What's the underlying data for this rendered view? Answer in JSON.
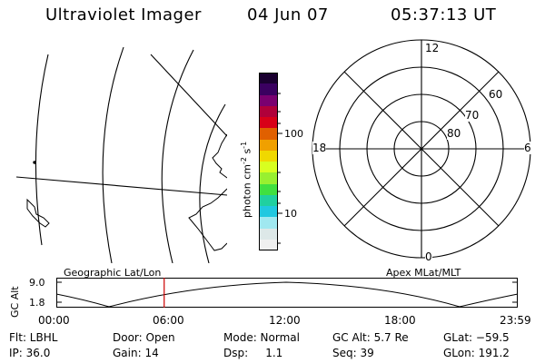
{
  "header": {
    "title": "Ultraviolet Imager",
    "date": "04 Jun 07",
    "time": "05:37:13 UT"
  },
  "colorbar": {
    "label": "photon cm",
    "label_sup1": "-2",
    "label_mid": "s",
    "label_sup2": "-1",
    "ticks": [
      "100",
      "10"
    ],
    "colors": [
      "#1a0030",
      "#3a0060",
      "#7a0070",
      "#b0003a",
      "#d80018",
      "#e06000",
      "#f0a000",
      "#f0d800",
      "#d8ff20",
      "#98f030",
      "#40e040",
      "#20d0a0",
      "#20c8e0",
      "#a0e8f0",
      "#dde8e8",
      "#f0f0f0"
    ]
  },
  "polar": {
    "ring_labels": [
      "60",
      "70",
      "80"
    ],
    "mlt_labels": {
      "top": "12",
      "bottom": "0",
      "left": "18",
      "right": "6"
    }
  },
  "timeline": {
    "left_title": "Geographic Lat/Lon",
    "right_title": "Apex MLat/MLT",
    "axis_label": "GC Alt",
    "y_ticks": [
      "9.0",
      "1.8"
    ],
    "x_ticks": [
      "00:00",
      "06:00",
      "12:00",
      "18:00",
      "23:59"
    ],
    "current_time_fraction": 0.2342
  },
  "info": {
    "flt": "Flt: LBHL",
    "ip": "IP: 36.0",
    "door": "Door: Open",
    "gain": "Gain: 14",
    "mode": "Mode: Normal",
    "dsp": "Dsp:     1.1",
    "gcalt": "GC Alt: 5.7 Re",
    "seq": "Seq: 39",
    "glat": "GLat: −59.5",
    "glon": "GLon: 191.2"
  }
}
